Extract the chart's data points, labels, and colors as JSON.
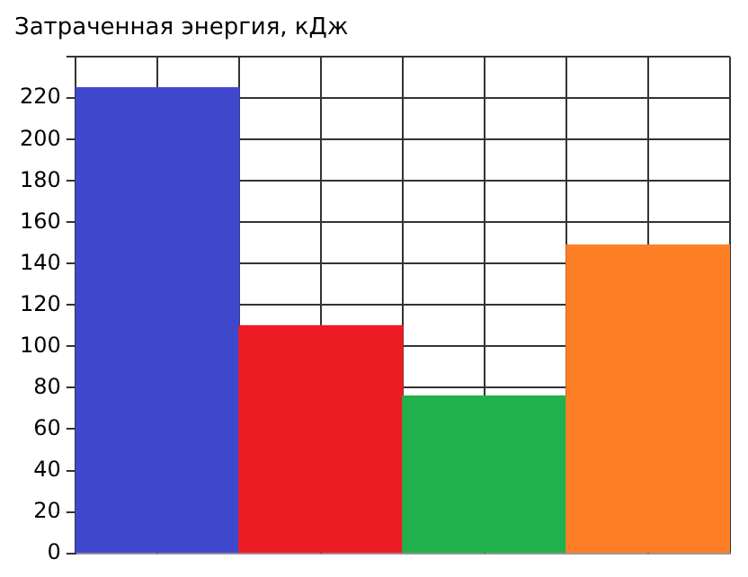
{
  "chart_data": {
    "type": "bar",
    "title": "Затраченная энергия, кДж",
    "categories": [
      null,
      null,
      null,
      null
    ],
    "values": [
      225,
      110,
      76,
      149
    ],
    "colors": [
      "#3f48cc",
      "#ed1c24",
      "#22b14c",
      "#ff7f27"
    ],
    "ylim": [
      0,
      240
    ],
    "yticks": [
      0,
      20,
      40,
      60,
      80,
      100,
      120,
      140,
      160,
      180,
      200,
      220,
      {
        "value": 240,
        "label": null
      }
    ],
    "grid": true,
    "legend": false
  }
}
